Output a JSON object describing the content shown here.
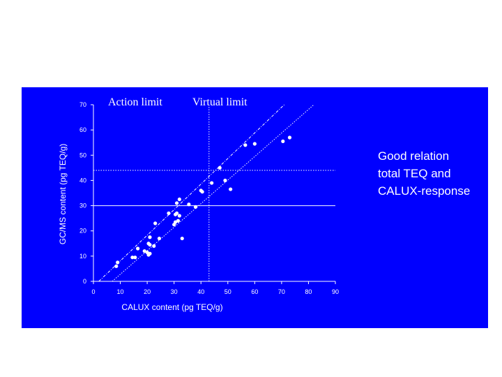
{
  "colors": {
    "panel": "#0000ff",
    "foreground": "#ffffff"
  },
  "annotations": {
    "action_limit": "Action limit",
    "virtual_limit": "Virtual limit"
  },
  "note": {
    "lines": [
      "Good relation",
      "total TEQ and",
      "CALUX-response"
    ]
  },
  "chart_data": {
    "type": "scatter",
    "xlabel": "CALUX content (pg TEQ/g)",
    "ylabel": "GC/MS content (pg TEQ/g)",
    "xlim": [
      0,
      90
    ],
    "ylim": [
      0,
      70
    ],
    "xticks": [
      0,
      10,
      20,
      30,
      40,
      50,
      60,
      70,
      80,
      90
    ],
    "yticks": [
      0,
      10,
      20,
      30,
      40,
      50,
      60,
      70
    ],
    "grid": false,
    "reference_lines": [
      {
        "kind": "horizontal",
        "y": 30,
        "style": "solid"
      },
      {
        "kind": "horizontal",
        "y": 44,
        "style": "dotted"
      },
      {
        "kind": "vertical",
        "x": 43,
        "style": "dotted"
      },
      {
        "kind": "diagonal",
        "from": [
          2,
          0
        ],
        "to": [
          71,
          70
        ],
        "style": "dash-dot"
      },
      {
        "kind": "diagonal",
        "from": [
          7,
          0
        ],
        "to": [
          82,
          70
        ],
        "style": "dotted"
      }
    ],
    "points": [
      [
        8.5,
        6
      ],
      [
        9,
        7.5
      ],
      [
        14.5,
        9.5
      ],
      [
        15.5,
        9.5
      ],
      [
        16.5,
        13
      ],
      [
        19,
        12
      ],
      [
        20,
        11.5
      ],
      [
        20.5,
        15
      ],
      [
        21,
        14.5
      ],
      [
        20.5,
        10.5
      ],
      [
        21,
        11
      ],
      [
        21,
        17.5
      ],
      [
        22.5,
        14
      ],
      [
        23,
        23
      ],
      [
        24.5,
        17
      ],
      [
        28,
        27
      ],
      [
        30,
        22.5
      ],
      [
        30.5,
        23.5
      ],
      [
        30.5,
        26.5
      ],
      [
        31,
        27
      ],
      [
        31,
        31
      ],
      [
        31.5,
        24
      ],
      [
        32,
        32.5
      ],
      [
        32,
        26
      ],
      [
        33,
        17
      ],
      [
        35.5,
        30.5
      ],
      [
        38,
        29.5
      ],
      [
        40,
        36
      ],
      [
        40.5,
        35.5
      ],
      [
        44,
        39
      ],
      [
        47,
        45
      ],
      [
        49,
        40
      ],
      [
        51,
        36.5
      ],
      [
        56.5,
        54
      ],
      [
        60,
        54.5
      ],
      [
        70.5,
        55.5
      ],
      [
        73,
        57
      ]
    ]
  }
}
